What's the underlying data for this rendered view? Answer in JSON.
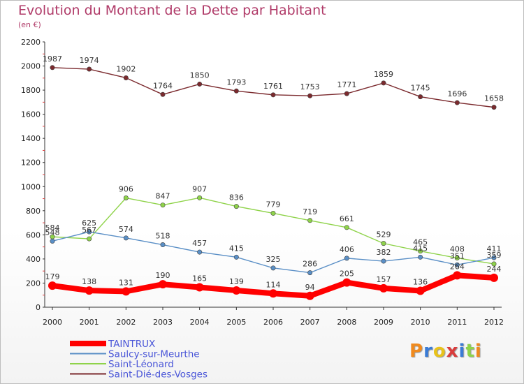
{
  "title": "Evolution du Montant de la Dette par Habitant",
  "subtitle": "(en €)",
  "logo": "Proxiti",
  "colors": {
    "title": "#b03a68",
    "TAINTRUX": "#ff0000",
    "Saulcy-sur-Meurthe": "#5a8fc6",
    "Saint-Léonard": "#8fd34a",
    "Saint-Dié-des-Vosges": "#7b2a2e"
  },
  "chart_data": {
    "type": "line",
    "title": "Evolution du Montant de la Dette par Habitant",
    "ylabel": "(en €)",
    "xlabel": "",
    "x": [
      "2000",
      "2001",
      "2002",
      "2003",
      "2004",
      "2005",
      "2006",
      "2007",
      "2008",
      "2009",
      "2010",
      "2011",
      "2012"
    ],
    "ylim": [
      0,
      2200
    ],
    "yticks": [
      0,
      200,
      400,
      600,
      800,
      1000,
      1200,
      1400,
      1600,
      1800,
      2000,
      2200
    ],
    "grid": false,
    "legend": "bottom-left",
    "series": [
      {
        "name": "TAINTRUX",
        "color": "#ff0000",
        "values": [
          179,
          138,
          131,
          190,
          165,
          139,
          114,
          94,
          205,
          157,
          136,
          264,
          244
        ]
      },
      {
        "name": "Saulcy-sur-Meurthe",
        "color": "#5a8fc6",
        "values": [
          548,
          625,
          574,
          518,
          457,
          415,
          325,
          286,
          406,
          382,
          415,
          351,
          411
        ]
      },
      {
        "name": "Saint-Léonard",
        "color": "#8fd34a",
        "values": [
          584,
          567,
          906,
          847,
          907,
          836,
          779,
          719,
          661,
          529,
          465,
          408,
          359
        ]
      },
      {
        "name": "Saint-Dié-des-Vosges",
        "color": "#7b2a2e",
        "values": [
          1987,
          1974,
          1902,
          1764,
          1850,
          1793,
          1761,
          1753,
          1771,
          1859,
          1745,
          1696,
          1658
        ]
      }
    ]
  }
}
